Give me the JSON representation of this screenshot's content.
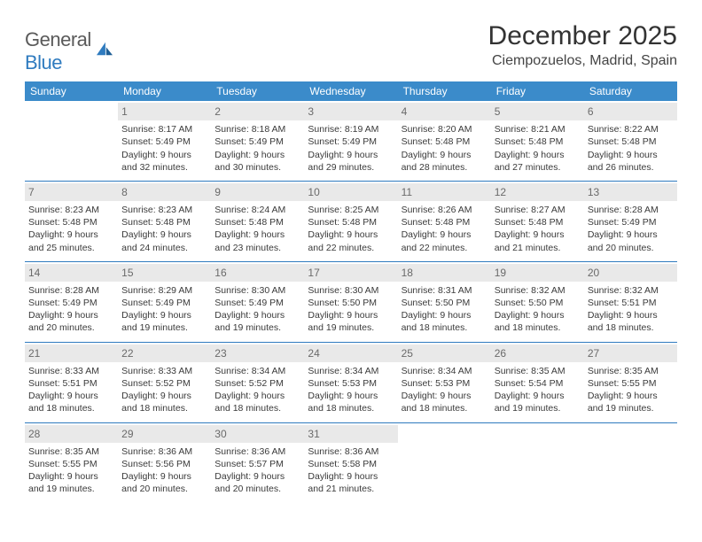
{
  "brand": {
    "word1": "General",
    "word2": "Blue"
  },
  "header": {
    "title": "December 2025",
    "location": "Ciempozuelos, Madrid, Spain"
  },
  "colors": {
    "header_bg": "#3b8bca",
    "rule": "#2f7bbf",
    "daynum_bg": "#e9e9e9"
  },
  "days": [
    "Sunday",
    "Monday",
    "Tuesday",
    "Wednesday",
    "Thursday",
    "Friday",
    "Saturday"
  ],
  "weeks": [
    [
      null,
      {
        "n": "1",
        "sr": "Sunrise: 8:17 AM",
        "ss": "Sunset: 5:49 PM",
        "d1": "Daylight: 9 hours",
        "d2": "and 32 minutes."
      },
      {
        "n": "2",
        "sr": "Sunrise: 8:18 AM",
        "ss": "Sunset: 5:49 PM",
        "d1": "Daylight: 9 hours",
        "d2": "and 30 minutes."
      },
      {
        "n": "3",
        "sr": "Sunrise: 8:19 AM",
        "ss": "Sunset: 5:49 PM",
        "d1": "Daylight: 9 hours",
        "d2": "and 29 minutes."
      },
      {
        "n": "4",
        "sr": "Sunrise: 8:20 AM",
        "ss": "Sunset: 5:48 PM",
        "d1": "Daylight: 9 hours",
        "d2": "and 28 minutes."
      },
      {
        "n": "5",
        "sr": "Sunrise: 8:21 AM",
        "ss": "Sunset: 5:48 PM",
        "d1": "Daylight: 9 hours",
        "d2": "and 27 minutes."
      },
      {
        "n": "6",
        "sr": "Sunrise: 8:22 AM",
        "ss": "Sunset: 5:48 PM",
        "d1": "Daylight: 9 hours",
        "d2": "and 26 minutes."
      }
    ],
    [
      {
        "n": "7",
        "sr": "Sunrise: 8:23 AM",
        "ss": "Sunset: 5:48 PM",
        "d1": "Daylight: 9 hours",
        "d2": "and 25 minutes."
      },
      {
        "n": "8",
        "sr": "Sunrise: 8:23 AM",
        "ss": "Sunset: 5:48 PM",
        "d1": "Daylight: 9 hours",
        "d2": "and 24 minutes."
      },
      {
        "n": "9",
        "sr": "Sunrise: 8:24 AM",
        "ss": "Sunset: 5:48 PM",
        "d1": "Daylight: 9 hours",
        "d2": "and 23 minutes."
      },
      {
        "n": "10",
        "sr": "Sunrise: 8:25 AM",
        "ss": "Sunset: 5:48 PM",
        "d1": "Daylight: 9 hours",
        "d2": "and 22 minutes."
      },
      {
        "n": "11",
        "sr": "Sunrise: 8:26 AM",
        "ss": "Sunset: 5:48 PM",
        "d1": "Daylight: 9 hours",
        "d2": "and 22 minutes."
      },
      {
        "n": "12",
        "sr": "Sunrise: 8:27 AM",
        "ss": "Sunset: 5:48 PM",
        "d1": "Daylight: 9 hours",
        "d2": "and 21 minutes."
      },
      {
        "n": "13",
        "sr": "Sunrise: 8:28 AM",
        "ss": "Sunset: 5:49 PM",
        "d1": "Daylight: 9 hours",
        "d2": "and 20 minutes."
      }
    ],
    [
      {
        "n": "14",
        "sr": "Sunrise: 8:28 AM",
        "ss": "Sunset: 5:49 PM",
        "d1": "Daylight: 9 hours",
        "d2": "and 20 minutes."
      },
      {
        "n": "15",
        "sr": "Sunrise: 8:29 AM",
        "ss": "Sunset: 5:49 PM",
        "d1": "Daylight: 9 hours",
        "d2": "and 19 minutes."
      },
      {
        "n": "16",
        "sr": "Sunrise: 8:30 AM",
        "ss": "Sunset: 5:49 PM",
        "d1": "Daylight: 9 hours",
        "d2": "and 19 minutes."
      },
      {
        "n": "17",
        "sr": "Sunrise: 8:30 AM",
        "ss": "Sunset: 5:50 PM",
        "d1": "Daylight: 9 hours",
        "d2": "and 19 minutes."
      },
      {
        "n": "18",
        "sr": "Sunrise: 8:31 AM",
        "ss": "Sunset: 5:50 PM",
        "d1": "Daylight: 9 hours",
        "d2": "and 18 minutes."
      },
      {
        "n": "19",
        "sr": "Sunrise: 8:32 AM",
        "ss": "Sunset: 5:50 PM",
        "d1": "Daylight: 9 hours",
        "d2": "and 18 minutes."
      },
      {
        "n": "20",
        "sr": "Sunrise: 8:32 AM",
        "ss": "Sunset: 5:51 PM",
        "d1": "Daylight: 9 hours",
        "d2": "and 18 minutes."
      }
    ],
    [
      {
        "n": "21",
        "sr": "Sunrise: 8:33 AM",
        "ss": "Sunset: 5:51 PM",
        "d1": "Daylight: 9 hours",
        "d2": "and 18 minutes."
      },
      {
        "n": "22",
        "sr": "Sunrise: 8:33 AM",
        "ss": "Sunset: 5:52 PM",
        "d1": "Daylight: 9 hours",
        "d2": "and 18 minutes."
      },
      {
        "n": "23",
        "sr": "Sunrise: 8:34 AM",
        "ss": "Sunset: 5:52 PM",
        "d1": "Daylight: 9 hours",
        "d2": "and 18 minutes."
      },
      {
        "n": "24",
        "sr": "Sunrise: 8:34 AM",
        "ss": "Sunset: 5:53 PM",
        "d1": "Daylight: 9 hours",
        "d2": "and 18 minutes."
      },
      {
        "n": "25",
        "sr": "Sunrise: 8:34 AM",
        "ss": "Sunset: 5:53 PM",
        "d1": "Daylight: 9 hours",
        "d2": "and 18 minutes."
      },
      {
        "n": "26",
        "sr": "Sunrise: 8:35 AM",
        "ss": "Sunset: 5:54 PM",
        "d1": "Daylight: 9 hours",
        "d2": "and 19 minutes."
      },
      {
        "n": "27",
        "sr": "Sunrise: 8:35 AM",
        "ss": "Sunset: 5:55 PM",
        "d1": "Daylight: 9 hours",
        "d2": "and 19 minutes."
      }
    ],
    [
      {
        "n": "28",
        "sr": "Sunrise: 8:35 AM",
        "ss": "Sunset: 5:55 PM",
        "d1": "Daylight: 9 hours",
        "d2": "and 19 minutes."
      },
      {
        "n": "29",
        "sr": "Sunrise: 8:36 AM",
        "ss": "Sunset: 5:56 PM",
        "d1": "Daylight: 9 hours",
        "d2": "and 20 minutes."
      },
      {
        "n": "30",
        "sr": "Sunrise: 8:36 AM",
        "ss": "Sunset: 5:57 PM",
        "d1": "Daylight: 9 hours",
        "d2": "and 20 minutes."
      },
      {
        "n": "31",
        "sr": "Sunrise: 8:36 AM",
        "ss": "Sunset: 5:58 PM",
        "d1": "Daylight: 9 hours",
        "d2": "and 21 minutes."
      },
      null,
      null,
      null
    ]
  ]
}
